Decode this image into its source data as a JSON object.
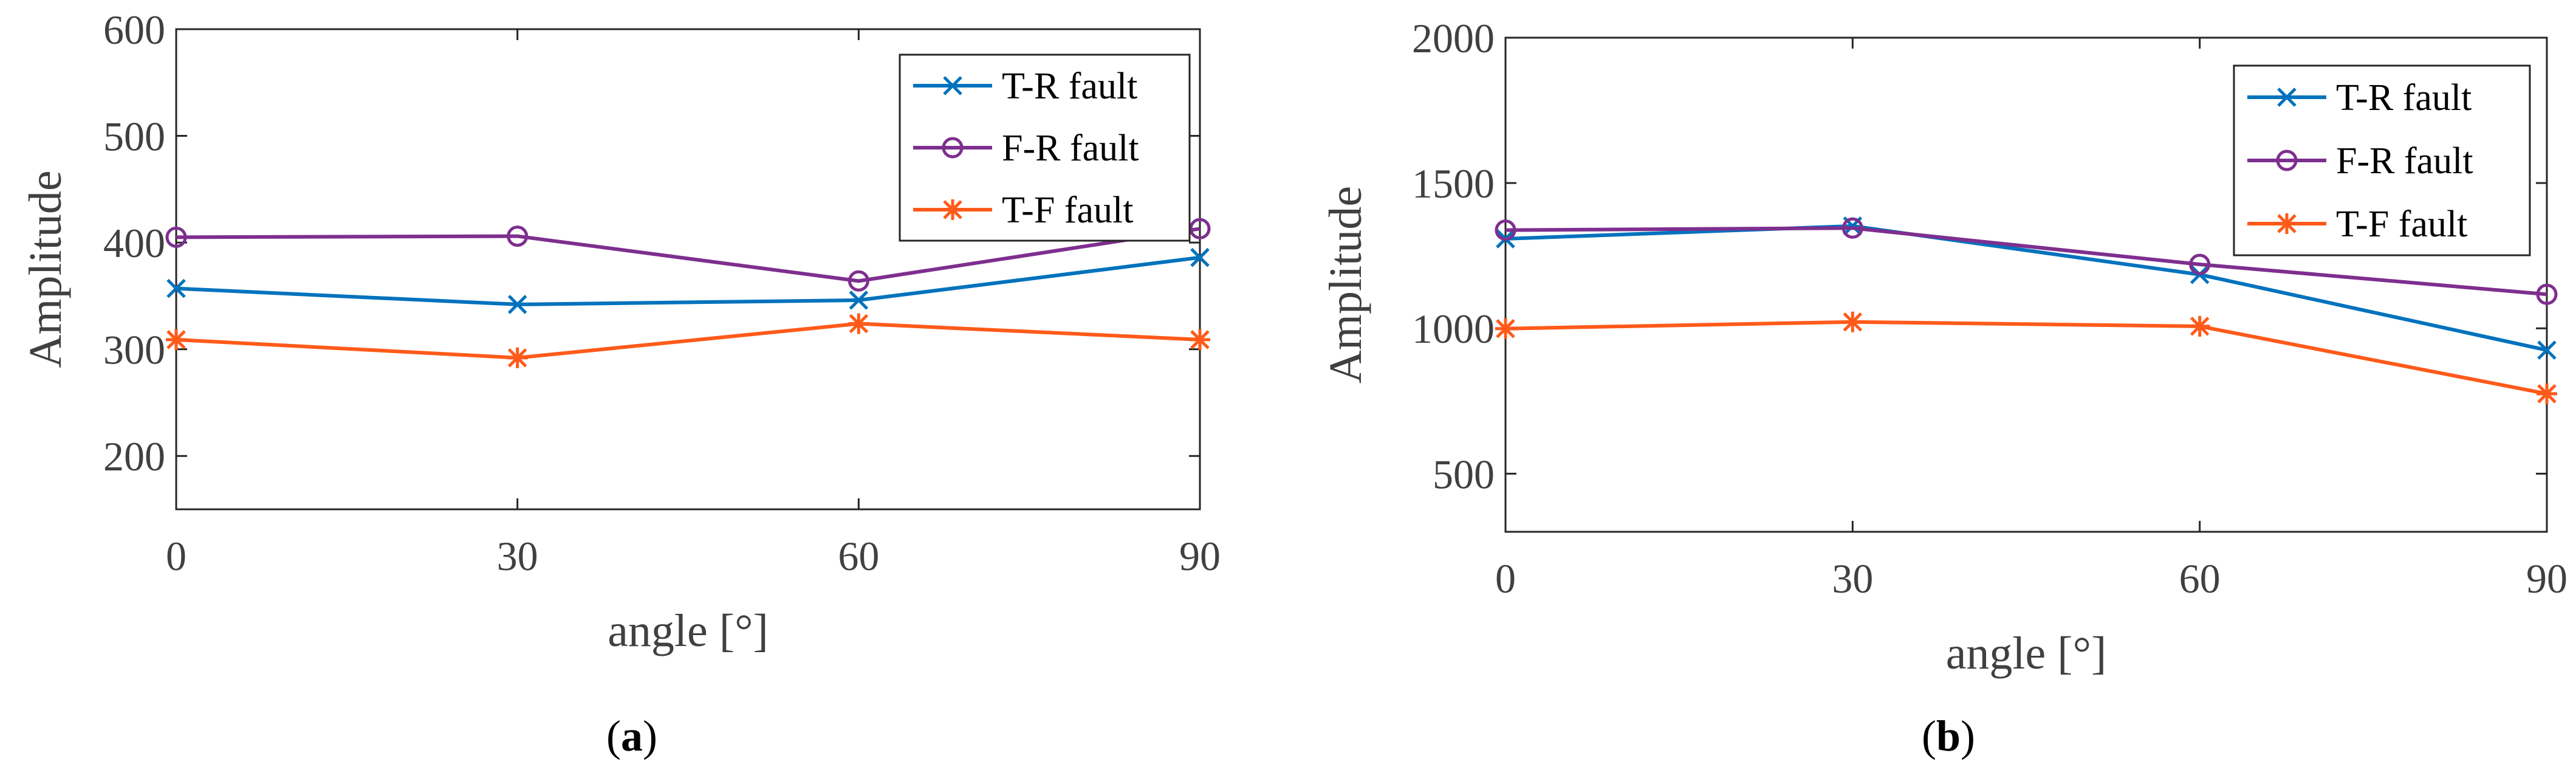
{
  "colors": {
    "tr": "#0072BD",
    "fr": "#7E2F8E",
    "tf": "#FF5A1A"
  },
  "chart_data": [
    {
      "type": "line",
      "caption_letter": "a",
      "xlabel": "angle [°]",
      "ylabel": "Amplitude",
      "x": [
        0,
        30,
        60,
        90
      ],
      "xlim": [
        0,
        90
      ],
      "ylim": [
        150,
        600
      ],
      "xticks": [
        "0",
        "30",
        "60",
        "90"
      ],
      "yticks": [
        "200",
        "300",
        "400",
        "500",
        "600"
      ],
      "legend_position": "top-right",
      "series": [
        {
          "name": "T-R fault",
          "marker": "x-mark",
          "values": [
            357,
            342,
            346,
            386
          ]
        },
        {
          "name": "F-R fault",
          "marker": "circle",
          "values": [
            405,
            406,
            364,
            413
          ]
        },
        {
          "name": "T-F fault",
          "marker": "asterisk",
          "values": [
            309,
            292,
            324,
            309
          ]
        }
      ]
    },
    {
      "type": "line",
      "caption_letter": "b",
      "xlabel": "angle [°]",
      "ylabel": "Amplitude",
      "x": [
        0,
        30,
        60,
        90
      ],
      "xlim": [
        0,
        90
      ],
      "ylim": [
        300,
        2000
      ],
      "xticks": [
        "0",
        "30",
        "60",
        "90"
      ],
      "yticks": [
        "500",
        "1000",
        "1500",
        "2000"
      ],
      "legend_position": "top-right",
      "series": [
        {
          "name": "T-R fault",
          "marker": "x-mark",
          "values": [
            1308,
            1352,
            1185,
            925
          ]
        },
        {
          "name": "F-R fault",
          "marker": "circle",
          "values": [
            1338,
            1345,
            1220,
            1117
          ]
        },
        {
          "name": "T-F fault",
          "marker": "asterisk",
          "values": [
            999,
            1022,
            1007,
            775
          ]
        }
      ]
    }
  ]
}
